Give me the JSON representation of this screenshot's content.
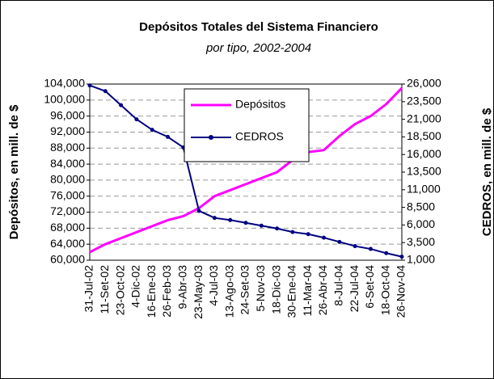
{
  "chart_data": {
    "type": "line",
    "title": "Depósitos Totales del Sistema Financiero",
    "subtitle": "por tipo, 2002-2004",
    "y_label": "Depósitos, en mill. de $",
    "y2_label": "CEDROS, en mill. de $",
    "categories": [
      "31-Jul-02",
      "11-Set-02",
      "23-Oct-02",
      "4-Dic-02",
      "16-Ene-03",
      "26-Feb-03",
      "9-Abr-03",
      "23-May-03",
      "4-Jul-03",
      "13-Ago-03",
      "24-Set-03",
      "5-Nov-03",
      "18-Dic-03",
      "30-Ene-04",
      "11-Mar-04",
      "26-Abr-04",
      "8-Jul-04",
      "22-Jul-04",
      "6-Set-04",
      "18-Oct-04",
      "26-Nov-04"
    ],
    "series": [
      {
        "name": "Depósitos",
        "color": "#ff00ff",
        "values": [
          62000,
          64000,
          65500,
          67000,
          68500,
          70000,
          71000,
          73000,
          76000,
          77500,
          79000,
          80500,
          82000,
          85000,
          87000,
          87500,
          91000,
          94000,
          96000,
          99000,
          103000
        ]
      },
      {
        "name": "CEDROS",
        "color": "#000080",
        "axis": "y2",
        "values": [
          25800,
          25000,
          23000,
          21000,
          19500,
          18500,
          17000,
          8000,
          7000,
          6700,
          6300,
          5900,
          5500,
          5000,
          4700,
          4200,
          3600,
          3000,
          2600,
          2000,
          1500
        ]
      }
    ],
    "ylim": [
      60000,
      104000
    ],
    "yticks": [
      {
        "value": 60000,
        "label": "60,000"
      },
      {
        "value": 64000,
        "label": "64,000"
      },
      {
        "value": 68000,
        "label": "68,000"
      },
      {
        "value": 72000,
        "label": "72,000"
      },
      {
        "value": 76000,
        "label": "76,000"
      },
      {
        "value": 80000,
        "label": "80,000"
      },
      {
        "value": 84000,
        "label": "84,000"
      },
      {
        "value": 88000,
        "label": "88,000"
      },
      {
        "value": 92000,
        "label": "92,000"
      },
      {
        "value": 96000,
        "label": "96,000"
      },
      {
        "value": 100000,
        "label": "100,000"
      },
      {
        "value": 104000,
        "label": "104,000"
      }
    ],
    "y2lim": [
      1000,
      26000
    ],
    "y2ticks": [
      {
        "value": 1000,
        "label": "1,000"
      },
      {
        "value": 3500,
        "label": "3,500"
      },
      {
        "value": 6000,
        "label": "6,000"
      },
      {
        "value": 8500,
        "label": "8,500"
      },
      {
        "value": 11000,
        "label": "11,000"
      },
      {
        "value": 13500,
        "label": "13,500"
      },
      {
        "value": 16000,
        "label": "16,000"
      },
      {
        "value": 18500,
        "label": "18,500"
      },
      {
        "value": 21000,
        "label": "21,000"
      },
      {
        "value": 23500,
        "label": "23,500"
      },
      {
        "value": 26000,
        "label": "26,000"
      }
    ],
    "grid": true
  }
}
